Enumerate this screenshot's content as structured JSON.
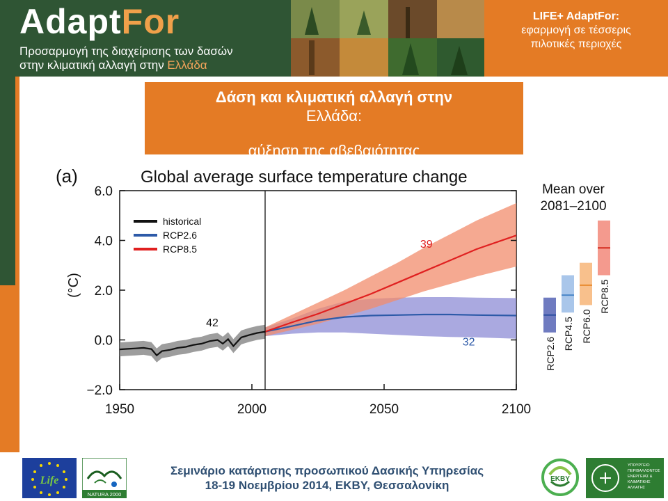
{
  "header": {
    "brand": {
      "name_part1": "Adapt",
      "name_part2": "For"
    },
    "subtitle_line1": "Προσαρμογή της διαχείρισης των δασών",
    "subtitle_line2_part1": "στην κλιματική αλλαγή στην ",
    "subtitle_line2_part2": "Ελλάδα",
    "right": {
      "line1": "LIFE+ AdaptFor:",
      "line2": "εφαρμογή σε τέσσερις",
      "line3": "πιλοτικές περιοχές"
    }
  },
  "slide_title": {
    "line1": "Δάση και κλιματική αλλαγή στην",
    "line2": "Ελλάδα:",
    "line3": "αύξηση της αβεβαιότητας"
  },
  "chart_data": {
    "type": "line",
    "panel_label": "(a)",
    "title": "Global average surface temperature change",
    "ylabel": "(°C)",
    "xlabel": "",
    "xlim": [
      1950,
      2100
    ],
    "ylim": [
      -2.0,
      6.0
    ],
    "xticks": [
      "1950",
      "2000",
      "2050",
      "2100"
    ],
    "yticks": [
      "6.0",
      "4.0",
      "2.0",
      "0.0",
      "−2.0"
    ],
    "divider_year": 2005,
    "legend": {
      "placement": "top-left"
    },
    "series": [
      {
        "name": "historical",
        "color": "#111111",
        "band_color": "#8c8c8c",
        "x": [
          1950,
          1953,
          1956,
          1959,
          1962,
          1964,
          1966,
          1969,
          1972,
          1975,
          1978,
          1981,
          1984,
          1987,
          1989,
          1991,
          1993,
          1996,
          1999,
          2002,
          2005
        ],
        "y": [
          -0.38,
          -0.36,
          -0.34,
          -0.32,
          -0.37,
          -0.62,
          -0.45,
          -0.4,
          -0.32,
          -0.28,
          -0.2,
          -0.15,
          -0.05,
          0.0,
          -0.15,
          0.03,
          -0.25,
          0.1,
          0.2,
          0.28,
          0.33
        ],
        "band": 0.28,
        "count_label": "42",
        "count_label_at": [
          1985,
          0.55
        ]
      },
      {
        "name": "RCP2.6",
        "color": "#2d5aa8",
        "band_color": "#8e8cd6",
        "x": [
          2005,
          2015,
          2025,
          2035,
          2045,
          2055,
          2065,
          2075,
          2085,
          2100
        ],
        "y": [
          0.33,
          0.55,
          0.78,
          0.92,
          0.98,
          1.0,
          1.02,
          1.02,
          1.0,
          0.98
        ],
        "band_lo": [
          0.15,
          0.25,
          0.3,
          0.3,
          0.25,
          0.2,
          0.15,
          0.12,
          0.1,
          0.05
        ],
        "band_hi": [
          0.5,
          0.85,
          1.25,
          1.55,
          1.65,
          1.7,
          1.72,
          1.72,
          1.7,
          1.68
        ],
        "count_label": "32",
        "count_label_at": [
          2082,
          -0.22
        ]
      },
      {
        "name": "RCP8.5",
        "color": "#e02020",
        "band_color": "#f28c6c",
        "x": [
          2005,
          2015,
          2025,
          2035,
          2045,
          2055,
          2065,
          2075,
          2085,
          2100
        ],
        "y": [
          0.33,
          0.7,
          1.05,
          1.45,
          1.85,
          2.3,
          2.75,
          3.2,
          3.65,
          4.2
        ],
        "band_lo": [
          0.15,
          0.4,
          0.65,
          0.95,
          1.25,
          1.6,
          1.95,
          2.25,
          2.55,
          2.95
        ],
        "band_hi": [
          0.5,
          1.0,
          1.5,
          2.0,
          2.55,
          3.1,
          3.7,
          4.25,
          4.8,
          5.5
        ],
        "count_label": "39",
        "count_label_at": [
          2066,
          3.7
        ]
      }
    ],
    "side_panel": {
      "title_line1": "Mean over",
      "title_line2": "2081–2100",
      "bars": [
        {
          "name": "RCP2.6",
          "low": 0.3,
          "high": 1.7,
          "mean": 1.0,
          "fill": "#6f7bc0",
          "line": "#2d4fa0"
        },
        {
          "name": "RCP4.5",
          "low": 1.1,
          "high": 2.6,
          "mean": 1.8,
          "fill": "#a9c6ea",
          "line": "#4a86c8"
        },
        {
          "name": "RCP6.0",
          "low": 1.4,
          "high": 3.1,
          "mean": 2.2,
          "fill": "#f8c08c",
          "line": "#e98a2e"
        },
        {
          "name": "RCP8.5",
          "low": 2.6,
          "high": 4.8,
          "mean": 3.7,
          "fill": "#f49a8e",
          "line": "#d42a1e"
        }
      ]
    }
  },
  "footer": {
    "line1": "Σεμινάριο κατάρτισης προσωπικού Δασικής Υπηρεσίας",
    "line2": "18-19 Νοεμβρίου 2014, ΕΚΒΥ, Θεσσαλονίκη",
    "logos": {
      "life": "Life",
      "natura": "NATURA 2000",
      "ekby": "ΕΚΒΥ",
      "ministry_line1": "ΥΠΟΥΡΓΕΙΟ",
      "ministry_line2": "ΠΕΡΙΒΑΛΛΟΝΤΟΣ",
      "ministry_line3": "ΕΝΕΡΓΕΙΑΣ &",
      "ministry_line4": "ΚΛΙΜΑΤΙΚΗΣ",
      "ministry_line5": "ΑΛΛΑΓΗΣ"
    }
  },
  "colors": {
    "orange": "#e47b25",
    "dark_green": "#2f5534",
    "footer_text": "#2f4f72"
  }
}
